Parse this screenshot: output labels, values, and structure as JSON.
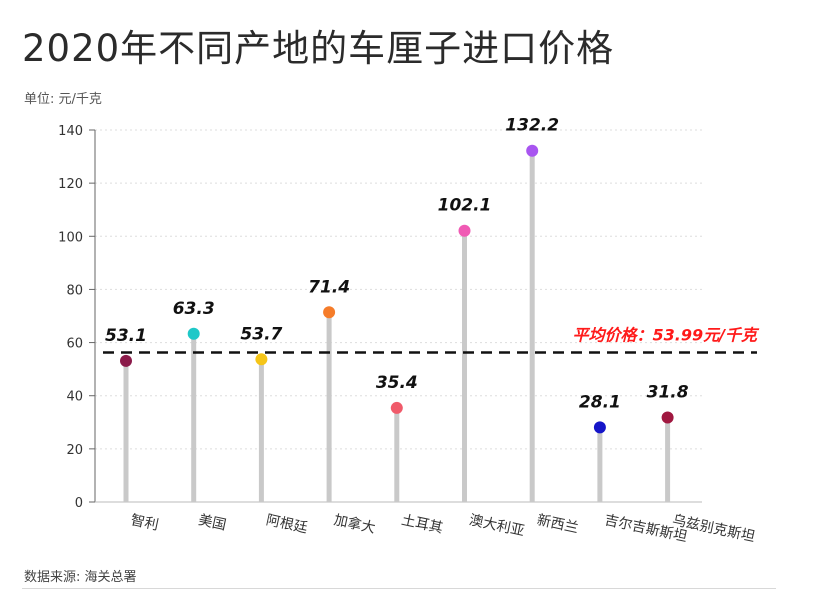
{
  "header": {
    "title": "2020年不同产地的车厘子进口价格",
    "unit": "单位: 元/千克"
  },
  "footer": {
    "source": "数据来源: 海关总署"
  },
  "colors": {
    "stem": "#c9c9c9",
    "grid": "#dddddd",
    "avg_line": "#111111",
    "avg_text": "#ff1a1a"
  },
  "chart_data": {
    "type": "lollipop",
    "title": "2020年不同产地的车厘子进口价格",
    "ylabel": "单位: 元/千克",
    "ylim": [
      0,
      140
    ],
    "yticks": [
      0,
      20,
      40,
      60,
      80,
      100,
      120,
      140
    ],
    "grid": true,
    "categories": [
      "智利",
      "美国",
      "阿根廷",
      "加拿大",
      "土耳其",
      "澳大利亚",
      "新西兰",
      "吉尔吉斯斯坦",
      "乌兹别克斯坦"
    ],
    "values": [
      53.1,
      63.3,
      53.7,
      71.4,
      35.4,
      102.1,
      132.2,
      28.1,
      31.8
    ],
    "value_labels": [
      "53.1",
      "63.3",
      "53.7",
      "71.4",
      "35.4",
      "102.1",
      "132.2",
      "28.1",
      "31.8"
    ],
    "point_colors": [
      "#8b1a4a",
      "#1fc8c8",
      "#f5c518",
      "#f57c2a",
      "#f05a6a",
      "#f05ab4",
      "#a855f0",
      "#1515c8",
      "#a01840"
    ],
    "average": {
      "value": 53.99,
      "label": "平均价格：53.99元/千克"
    }
  }
}
